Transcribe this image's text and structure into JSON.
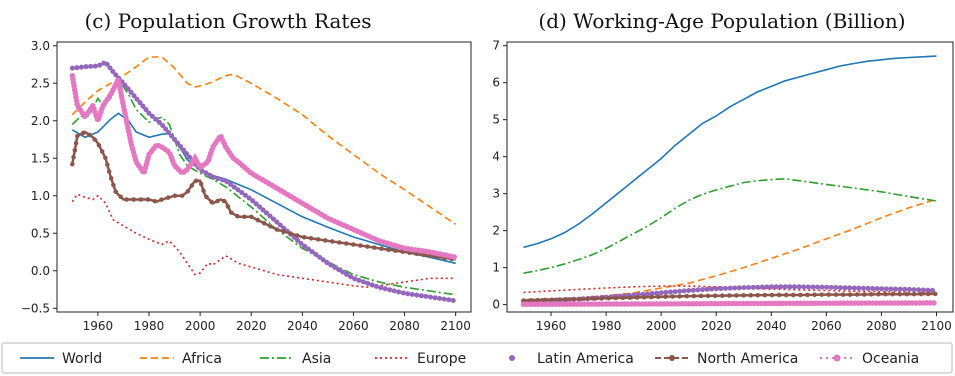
{
  "chart_data": [
    {
      "type": "line",
      "title": "(c) Population Growth Rates",
      "xlabel": "",
      "ylabel": "",
      "xlim": [
        1944,
        2106
      ],
      "ylim": [
        -0.55,
        3.05
      ],
      "xticks": [
        1960,
        1980,
        2000,
        2020,
        2040,
        2060,
        2080,
        2100
      ],
      "yticks": [
        -0.5,
        0.0,
        0.5,
        1.0,
        1.5,
        2.0,
        2.5,
        3.0
      ],
      "ytick_labels": [
        "−0.5",
        "0.0",
        "0.5",
        "1.0",
        "1.5",
        "2.0",
        "2.5",
        "3.0"
      ],
      "grid": false,
      "series": [
        {
          "name": "World",
          "x": [
            1950,
            1955,
            1960,
            1965,
            1968,
            1972,
            1975,
            1980,
            1985,
            1988,
            1992,
            1995,
            2000,
            2005,
            2010,
            2015,
            2020,
            2030,
            2040,
            2050,
            2060,
            2070,
            2080,
            2090,
            2100
          ],
          "y": [
            1.88,
            1.78,
            1.85,
            2.02,
            2.1,
            2.0,
            1.85,
            1.78,
            1.82,
            1.83,
            1.65,
            1.48,
            1.35,
            1.27,
            1.22,
            1.15,
            1.08,
            0.9,
            0.72,
            0.58,
            0.45,
            0.35,
            0.25,
            0.18,
            0.1
          ]
        },
        {
          "name": "Africa",
          "x": [
            1950,
            1955,
            1960,
            1965,
            1970,
            1975,
            1980,
            1985,
            1990,
            1995,
            1998,
            2002,
            2005,
            2010,
            2013,
            2020,
            2030,
            2040,
            2050,
            2060,
            2070,
            2080,
            2090,
            2100
          ],
          "y": [
            2.08,
            2.25,
            2.4,
            2.5,
            2.6,
            2.72,
            2.85,
            2.85,
            2.7,
            2.5,
            2.45,
            2.48,
            2.52,
            2.6,
            2.62,
            2.5,
            2.3,
            2.08,
            1.8,
            1.55,
            1.3,
            1.08,
            0.85,
            0.62
          ]
        },
        {
          "name": "Asia",
          "x": [
            1950,
            1953,
            1957,
            1960,
            1962,
            1965,
            1968,
            1972,
            1975,
            1980,
            1985,
            1988,
            1992,
            1995,
            2000,
            2005,
            2010,
            2020,
            2030,
            2040,
            2050,
            2060,
            2070,
            2080,
            2090,
            2100
          ],
          "y": [
            1.95,
            2.05,
            2.1,
            2.3,
            2.2,
            2.3,
            2.55,
            2.35,
            2.15,
            1.98,
            2.05,
            1.95,
            1.55,
            1.4,
            1.3,
            1.22,
            1.12,
            0.85,
            0.55,
            0.3,
            0.12,
            -0.05,
            -0.15,
            -0.22,
            -0.27,
            -0.32
          ]
        },
        {
          "name": "Europe",
          "x": [
            1950,
            1952,
            1955,
            1958,
            1960,
            1963,
            1966,
            1970,
            1975,
            1980,
            1985,
            1988,
            1992,
            1995,
            1998,
            2000,
            2003,
            2005,
            2008,
            2010,
            2015,
            2020,
            2030,
            2040,
            2050,
            2060,
            2065,
            2070,
            2080,
            2090,
            2100
          ],
          "y": [
            0.92,
            1.02,
            0.98,
            0.95,
            1.0,
            0.9,
            0.68,
            0.6,
            0.5,
            0.42,
            0.35,
            0.4,
            0.25,
            0.1,
            -0.05,
            -0.03,
            0.1,
            0.08,
            0.15,
            0.2,
            0.1,
            0.05,
            -0.05,
            -0.1,
            -0.15,
            -0.2,
            -0.22,
            -0.2,
            -0.15,
            -0.1,
            -0.1
          ]
        },
        {
          "name": "Latin America",
          "x": [
            1950,
            1955,
            1960,
            1963,
            1966,
            1970,
            1975,
            1980,
            1985,
            1990,
            1995,
            2000,
            2005,
            2010,
            2020,
            2030,
            2040,
            2050,
            2060,
            2070,
            2080,
            2090,
            2100
          ],
          "y": [
            2.7,
            2.72,
            2.73,
            2.78,
            2.65,
            2.5,
            2.3,
            2.1,
            1.95,
            1.75,
            1.55,
            1.35,
            1.25,
            1.2,
            0.95,
            0.65,
            0.35,
            0.1,
            -0.1,
            -0.22,
            -0.3,
            -0.35,
            -0.4
          ]
        },
        {
          "name": "North America",
          "x": [
            1950,
            1952,
            1955,
            1958,
            1960,
            1963,
            1965,
            1967,
            1970,
            1975,
            1980,
            1983,
            1985,
            1990,
            1993,
            1995,
            1998,
            2000,
            2002,
            2005,
            2008,
            2010,
            2012,
            2015,
            2020,
            2030,
            2040,
            2050,
            2060,
            2070,
            2080,
            2090,
            2100
          ],
          "y": [
            1.42,
            1.8,
            1.85,
            1.78,
            1.7,
            1.5,
            1.25,
            1.05,
            0.95,
            0.95,
            0.95,
            0.92,
            0.95,
            1.0,
            1.0,
            1.05,
            1.2,
            1.2,
            1.0,
            0.9,
            0.95,
            0.92,
            0.78,
            0.72,
            0.72,
            0.55,
            0.45,
            0.4,
            0.35,
            0.3,
            0.25,
            0.2,
            0.15
          ]
        },
        {
          "name": "Oceania",
          "x": [
            1950,
            1952,
            1955,
            1958,
            1960,
            1962,
            1965,
            1968,
            1970,
            1973,
            1975,
            1978,
            1980,
            1983,
            1985,
            1988,
            1990,
            1993,
            1995,
            1998,
            2000,
            2003,
            2005,
            2008,
            2010,
            2013,
            2015,
            2020,
            2030,
            2040,
            2050,
            2060,
            2070,
            2080,
            2090,
            2100
          ],
          "y": [
            2.6,
            2.2,
            2.05,
            2.2,
            2.0,
            2.2,
            2.35,
            2.55,
            2.2,
            1.7,
            1.45,
            1.3,
            1.55,
            1.68,
            1.65,
            1.58,
            1.4,
            1.3,
            1.35,
            1.5,
            1.38,
            1.45,
            1.65,
            1.8,
            1.65,
            1.5,
            1.45,
            1.3,
            1.1,
            0.9,
            0.7,
            0.55,
            0.4,
            0.3,
            0.25,
            0.18
          ]
        }
      ]
    },
    {
      "type": "line",
      "title": "(d) Working-Age Population (Billion)",
      "xlabel": "",
      "ylabel": "",
      "xlim": [
        1944,
        2106
      ],
      "ylim": [
        -0.2,
        7.1
      ],
      "xticks": [
        1960,
        1980,
        2000,
        2020,
        2040,
        2060,
        2080,
        2100
      ],
      "yticks": [
        0,
        1,
        2,
        3,
        4,
        5,
        6,
        7
      ],
      "ytick_labels": [
        "0",
        "1",
        "2",
        "3",
        "4",
        "5",
        "6",
        "7"
      ],
      "grid": false,
      "series": [
        {
          "name": "World",
          "x": [
            1950,
            1955,
            1960,
            1965,
            1970,
            1975,
            1980,
            1985,
            1990,
            1995,
            2000,
            2005,
            2010,
            2015,
            2020,
            2025,
            2030,
            2035,
            2040,
            2045,
            2050,
            2055,
            2060,
            2065,
            2070,
            2075,
            2080,
            2085,
            2090,
            2095,
            2100
          ],
          "y": [
            1.55,
            1.65,
            1.78,
            1.95,
            2.18,
            2.45,
            2.75,
            3.05,
            3.35,
            3.65,
            3.95,
            4.3,
            4.6,
            4.9,
            5.1,
            5.35,
            5.55,
            5.75,
            5.9,
            6.05,
            6.15,
            6.25,
            6.35,
            6.45,
            6.52,
            6.58,
            6.62,
            6.66,
            6.68,
            6.7,
            6.72
          ]
        },
        {
          "name": "Africa",
          "x": [
            1950,
            1960,
            1970,
            1980,
            1990,
            2000,
            2010,
            2020,
            2030,
            2040,
            2050,
            2060,
            2070,
            2080,
            2090,
            2100
          ],
          "y": [
            0.13,
            0.15,
            0.18,
            0.24,
            0.32,
            0.45,
            0.58,
            0.78,
            1.0,
            1.25,
            1.5,
            1.78,
            2.05,
            2.35,
            2.62,
            2.85
          ]
        },
        {
          "name": "Asia",
          "x": [
            1950,
            1955,
            1960,
            1965,
            1970,
            1975,
            1980,
            1985,
            1990,
            1995,
            2000,
            2005,
            2010,
            2015,
            2020,
            2025,
            2030,
            2035,
            2040,
            2045,
            2050,
            2060,
            2070,
            2080,
            2090,
            2100
          ],
          "y": [
            0.85,
            0.92,
            1.0,
            1.1,
            1.22,
            1.35,
            1.52,
            1.72,
            1.92,
            2.12,
            2.35,
            2.6,
            2.82,
            2.98,
            3.1,
            3.2,
            3.3,
            3.35,
            3.38,
            3.4,
            3.35,
            3.25,
            3.15,
            3.05,
            2.92,
            2.8
          ]
        },
        {
          "name": "Europe",
          "x": [
            1950,
            1960,
            1970,
            1980,
            1990,
            2000,
            2010,
            2020,
            2030,
            2040,
            2050,
            2060,
            2070,
            2080,
            2090,
            2100
          ],
          "y": [
            0.33,
            0.37,
            0.41,
            0.45,
            0.48,
            0.5,
            0.5,
            0.48,
            0.45,
            0.42,
            0.4,
            0.38,
            0.36,
            0.35,
            0.34,
            0.33
          ]
        },
        {
          "name": "Latin America",
          "x": [
            1950,
            1960,
            1970,
            1980,
            1990,
            2000,
            2010,
            2020,
            2030,
            2040,
            2050,
            2060,
            2070,
            2080,
            2090,
            2100
          ],
          "y": [
            0.09,
            0.12,
            0.15,
            0.2,
            0.26,
            0.32,
            0.38,
            0.43,
            0.46,
            0.48,
            0.48,
            0.47,
            0.45,
            0.43,
            0.41,
            0.38
          ]
        },
        {
          "name": "North America",
          "x": [
            1950,
            1960,
            1970,
            1980,
            1990,
            2000,
            2010,
            2020,
            2030,
            2040,
            2050,
            2060,
            2070,
            2080,
            2090,
            2100
          ],
          "y": [
            0.11,
            0.13,
            0.15,
            0.17,
            0.19,
            0.21,
            0.23,
            0.24,
            0.25,
            0.26,
            0.26,
            0.27,
            0.27,
            0.28,
            0.28,
            0.29
          ]
        },
        {
          "name": "Oceania",
          "x": [
            1950,
            1975,
            2000,
            2025,
            2050,
            2075,
            2100
          ],
          "y": [
            0.008,
            0.013,
            0.02,
            0.028,
            0.035,
            0.04,
            0.045
          ]
        }
      ]
    }
  ],
  "legend": {
    "placement": "bottom",
    "items": [
      {
        "label": "World",
        "color": "#1f77b4",
        "style": "solid"
      },
      {
        "label": "Africa",
        "color": "#ff7f0e",
        "style": "dashed"
      },
      {
        "label": "Asia",
        "color": "#2ca02c",
        "style": "dashdot"
      },
      {
        "label": "Europe",
        "color": "#d62728",
        "style": "dotted"
      },
      {
        "label": "Latin America",
        "color": "#9467bd",
        "style": "dots"
      },
      {
        "label": "North America",
        "color": "#8c564b",
        "style": "dashdots"
      },
      {
        "label": "Oceania",
        "color": "#e377c2",
        "style": "dotsdash"
      }
    ]
  }
}
